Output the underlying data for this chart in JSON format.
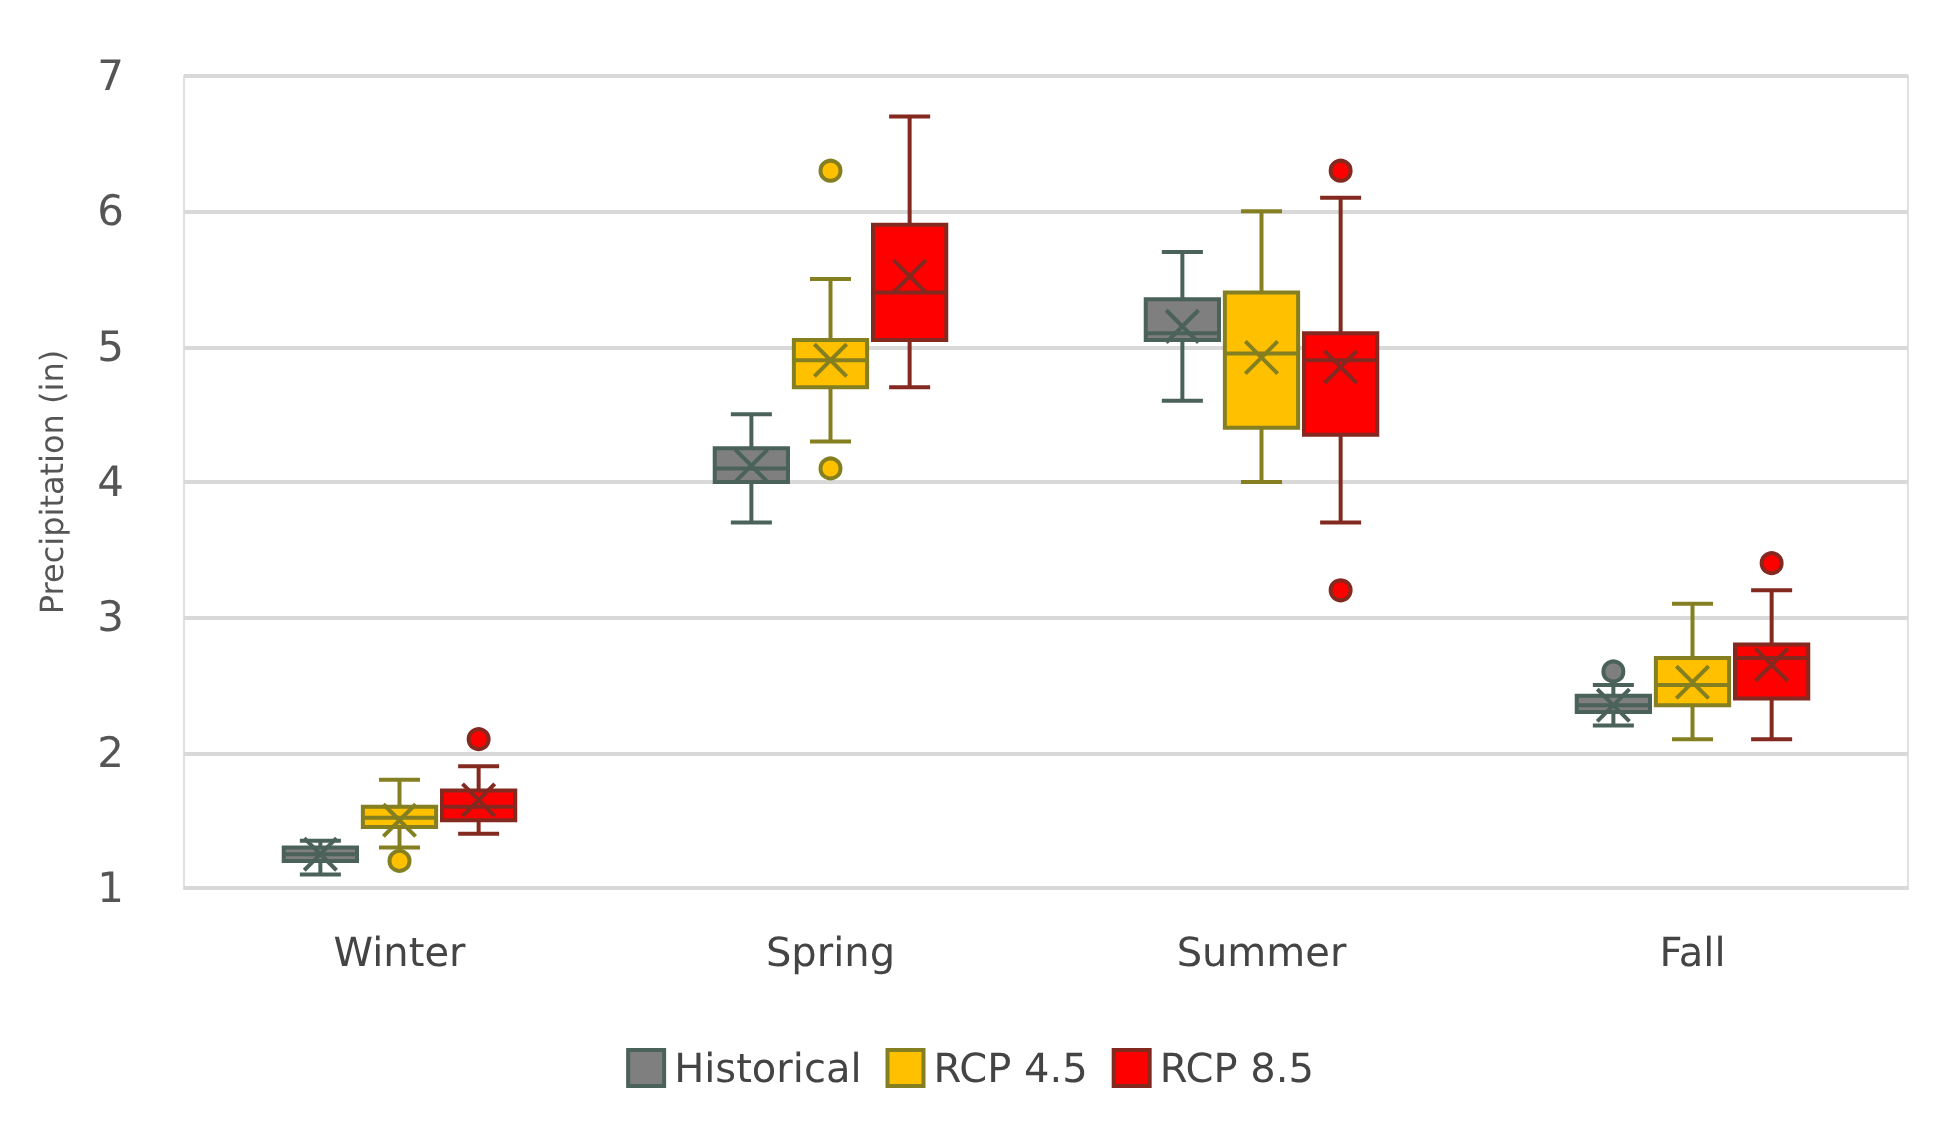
{
  "chart_data": {
    "type": "box",
    "ylabel": "Precipitation (in)",
    "categories": [
      "Winter",
      "Spring",
      "Summer",
      "Fall"
    ],
    "ylim": [
      1,
      7
    ],
    "yticks": [
      1,
      2,
      3,
      4,
      5,
      6,
      7
    ],
    "grid": "y",
    "legend": "bottom",
    "series": [
      {
        "name": "Historical",
        "color": "#7f7f7f",
        "boxes": [
          {
            "low": 1.1,
            "q1": 1.2,
            "median": 1.25,
            "q3": 1.3,
            "high": 1.35,
            "mean": 1.25
          },
          {
            "low": 3.7,
            "q1": 4.0,
            "median": 4.1,
            "q3": 4.25,
            "high": 4.5,
            "mean": 4.12
          },
          {
            "low": 4.6,
            "q1": 5.05,
            "median": 5.1,
            "q3": 5.35,
            "high": 5.7,
            "mean": 5.15
          },
          {
            "low": 2.2,
            "q1": 2.3,
            "median": 2.35,
            "q3": 2.42,
            "high": 2.5,
            "mean": 2.35,
            "outliers": [
              2.6
            ]
          }
        ]
      },
      {
        "name": "RCP 4.5",
        "color": "#ffc000",
        "boxes": [
          {
            "low": 1.3,
            "q1": 1.45,
            "median": 1.52,
            "q3": 1.6,
            "high": 1.8,
            "mean": 1.5,
            "outliers": [
              1.2
            ]
          },
          {
            "low": 4.3,
            "q1": 4.7,
            "median": 4.9,
            "q3": 5.05,
            "high": 5.5,
            "mean": 4.9,
            "outliers": [
              4.1,
              6.3
            ]
          },
          {
            "low": 4.0,
            "q1": 4.4,
            "median": 4.95,
            "q3": 5.4,
            "high": 6.0,
            "mean": 4.92
          },
          {
            "low": 2.1,
            "q1": 2.35,
            "median": 2.5,
            "q3": 2.7,
            "high": 3.1,
            "mean": 2.52
          }
        ]
      },
      {
        "name": "RCP 8.5",
        "color": "#ff0000",
        "boxes": [
          {
            "low": 1.4,
            "q1": 1.5,
            "median": 1.6,
            "q3": 1.72,
            "high": 1.9,
            "mean": 1.65,
            "outliers": [
              2.1
            ]
          },
          {
            "low": 4.7,
            "q1": 5.05,
            "median": 5.4,
            "q3": 5.9,
            "high": 6.7,
            "mean": 5.52
          },
          {
            "low": 3.7,
            "q1": 4.35,
            "median": 4.9,
            "q3": 5.1,
            "high": 6.1,
            "mean": 4.85,
            "outliers": [
              6.3,
              3.2
            ]
          },
          {
            "low": 2.1,
            "q1": 2.4,
            "median": 2.7,
            "q3": 2.8,
            "high": 3.2,
            "mean": 2.65,
            "outliers": [
              3.4
            ]
          }
        ]
      }
    ]
  }
}
